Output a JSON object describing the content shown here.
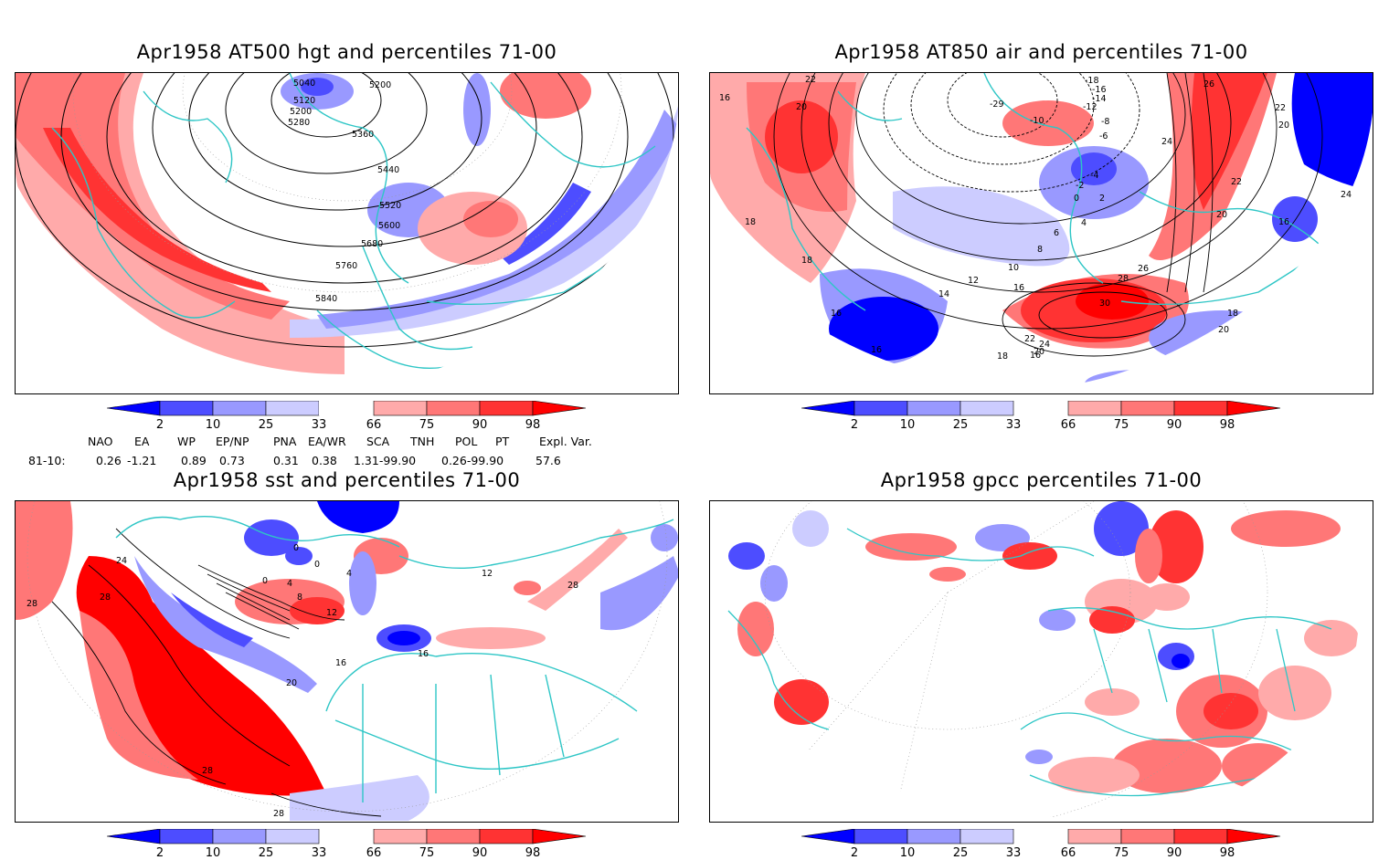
{
  "colors": {
    "frame": "#000000",
    "coastline": "#2ec6c6",
    "p2": "#0000ff",
    "p10": "#4d4dff",
    "p25": "#9999ff",
    "p33": "#ccccff",
    "p66": "#ffaaaa",
    "p75": "#ff7777",
    "p90": "#ff3333",
    "p98": "#ff0000"
  },
  "colorbar": {
    "labels": [
      "2",
      "10",
      "25",
      "33",
      "66",
      "75",
      "90",
      "98"
    ]
  },
  "panels": [
    {
      "title": "Apr1958 AT500 hgt and percentiles 71-00",
      "contour_labels": [
        "5040",
        "5120",
        "5200",
        "5280",
        "5200",
        "5360",
        "5440",
        "5520",
        "5600",
        "5680",
        "5760",
        "5840"
      ]
    },
    {
      "title": "Apr1958 AT850 air and percentiles 71-00",
      "contour_labels": [
        "22",
        "20",
        "16",
        "18",
        "18",
        "16",
        "16",
        "-29",
        "-10",
        "-18",
        "-16",
        "-14",
        "-12",
        "-8",
        "-6",
        "-4",
        "-2",
        "0",
        "2",
        "4",
        "6",
        "8",
        "10",
        "12",
        "14",
        "16",
        "18",
        "20",
        "22",
        "24",
        "26",
        "28",
        "30",
        "26",
        "24",
        "22",
        "20",
        "22",
        "20",
        "24",
        "16",
        "16",
        "18",
        "20"
      ]
    },
    {
      "title": "Apr1958 sst and percentiles 71-00",
      "contour_labels": [
        "28",
        "28",
        "24",
        "0",
        "0",
        "0",
        "4",
        "4",
        "8",
        "12",
        "16",
        "16",
        "20",
        "28",
        "28",
        "12",
        "28"
      ]
    },
    {
      "title": "Apr1958 gpcc percentiles 71-00",
      "contour_labels": []
    }
  ],
  "indices": {
    "header": [
      "NAO",
      "EA",
      "WP",
      "EP/NP",
      "PNA",
      "EA/WR",
      "SCA",
      "TNH",
      "POL",
      "PT",
      "Expl. Var."
    ],
    "row_label": "81-10:",
    "values": [
      "0.26",
      "-1.21",
      "0.89",
      "0.73",
      "0.31",
      "0.38",
      "1.31-99.90",
      "0.26-99.90",
      "57.6"
    ]
  }
}
